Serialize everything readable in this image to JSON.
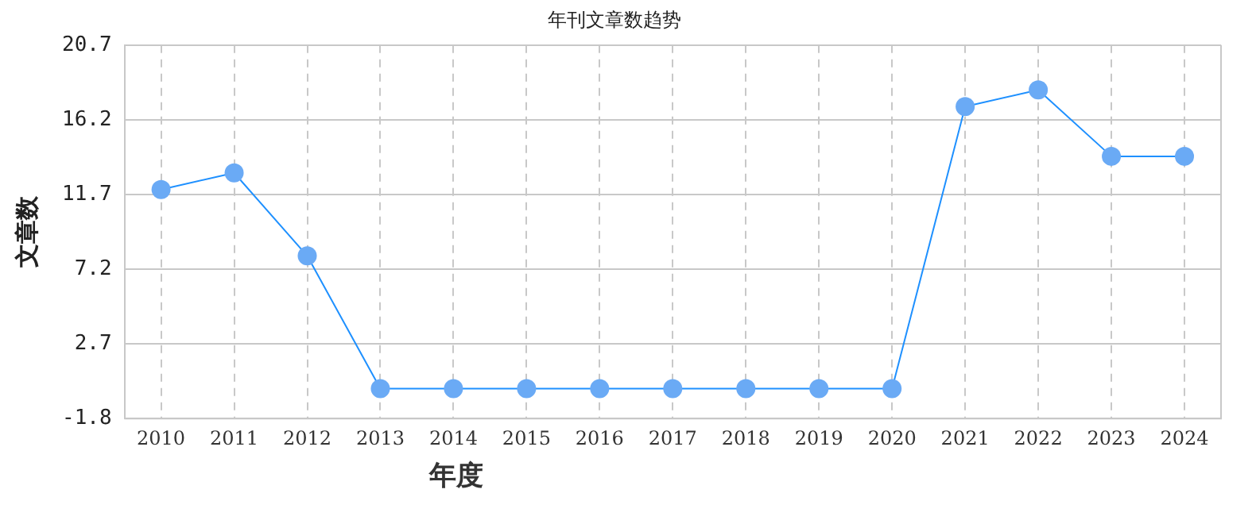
{
  "chart_data": {
    "type": "line",
    "title": "年刊文章数趋势",
    "xlabel": "年度",
    "ylabel": "文章数",
    "categories": [
      "2010",
      "2011",
      "2012",
      "2013",
      "2014",
      "2015",
      "2016",
      "2017",
      "2018",
      "2019",
      "2020",
      "2021",
      "2022",
      "2023",
      "2024"
    ],
    "series": [
      {
        "color": "#1e90ff",
        "values": [
          12,
          13,
          8,
          0,
          0,
          0,
          0,
          0,
          0,
          0,
          0,
          17,
          18,
          14,
          14
        ]
      }
    ],
    "ylim": [
      -1.8,
      20.7
    ],
    "yticks": [
      -1.8,
      2.7,
      7.2,
      11.7,
      16.2,
      20.7
    ],
    "grid": true,
    "legend": false,
    "marker": "circle",
    "line_style": "solid"
  }
}
